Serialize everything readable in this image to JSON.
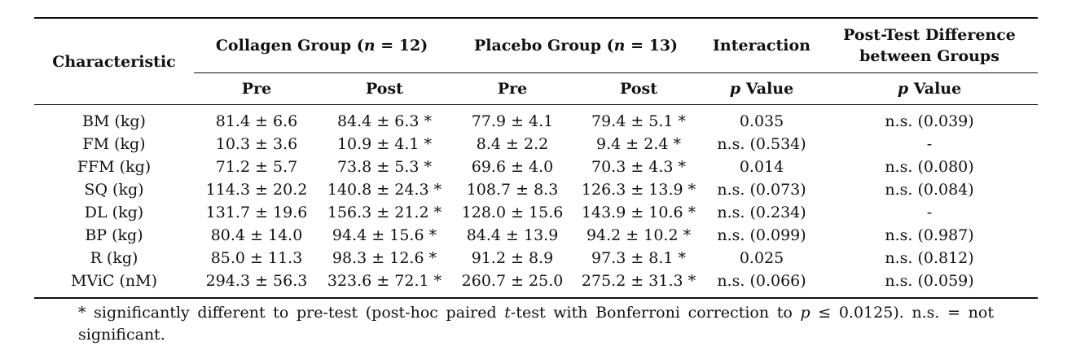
{
  "table": {
    "header": {
      "characteristic": "Characteristic",
      "collagen_prefix": "Collagen Group (",
      "collagen_n": "n",
      "collagen_suffix": " = 12)",
      "placebo_prefix": "Placebo Group (",
      "placebo_n": "n",
      "placebo_suffix": " = 13)",
      "interaction": "Interaction",
      "post_test_line1": "Post-Test Difference",
      "post_test_line2": "between Groups",
      "pre": "Pre",
      "post": "Post",
      "p_letter": "p",
      "value_word": " Value"
    },
    "rows": [
      [
        "BM (kg)",
        "81.4 ± 6.6",
        "84.4 ± 6.3 *",
        "77.9 ± 4.1",
        "79.4 ± 5.1 *",
        "0.035",
        "n.s. (0.039)"
      ],
      [
        "FM (kg)",
        "10.3 ± 3.6",
        "10.9 ± 4.1 *",
        "8.4 ± 2.2",
        "9.4 ± 2.4 *",
        "n.s. (0.534)",
        "-"
      ],
      [
        "FFM (kg)",
        "71.2 ± 5.7",
        "73.8 ± 5.3 *",
        "69.6 ± 4.0",
        "70.3 ± 4.3 *",
        "0.014",
        "n.s. (0.080)"
      ],
      [
        "SQ (kg)",
        "114.3 ± 20.2",
        "140.8 ± 24.3 *",
        "108.7 ± 8.3",
        "126.3 ± 13.9 *",
        "n.s. (0.073)",
        "n.s. (0.084)"
      ],
      [
        "DL (kg)",
        "131.7 ± 19.6",
        "156.3 ± 21.2 *",
        "128.0 ± 15.6",
        "143.9 ± 10.6 *",
        "n.s. (0.234)",
        "-"
      ],
      [
        "BP (kg)",
        "80.4 ± 14.0",
        "94.4 ± 15.6 *",
        "84.4 ± 13.9",
        "94.2 ± 10.2 *",
        "n.s. (0.099)",
        "n.s. (0.987)"
      ],
      [
        "R (kg)",
        "85.0 ± 11.3",
        "98.3 ± 12.6 *",
        "91.2 ± 8.9",
        "97.3 ± 8.1 *",
        "0.025",
        "n.s. (0.812)"
      ],
      [
        "MViC (nM)",
        "294.3 ± 56.3",
        "323.6 ± 72.1 *",
        "260.7 ± 25.0",
        "275.2 ± 31.3 *",
        "n.s. (0.066)",
        "n.s. (0.059)"
      ]
    ]
  },
  "footnote": {
    "part1": "* significantly different to pre-test (post-hoc paired ",
    "t_letter": "t",
    "part2": "-test with Bonferroni correction to ",
    "p_letter": "p",
    "part3": " ≤ 0.0125).  n.s.  =  not significant."
  }
}
